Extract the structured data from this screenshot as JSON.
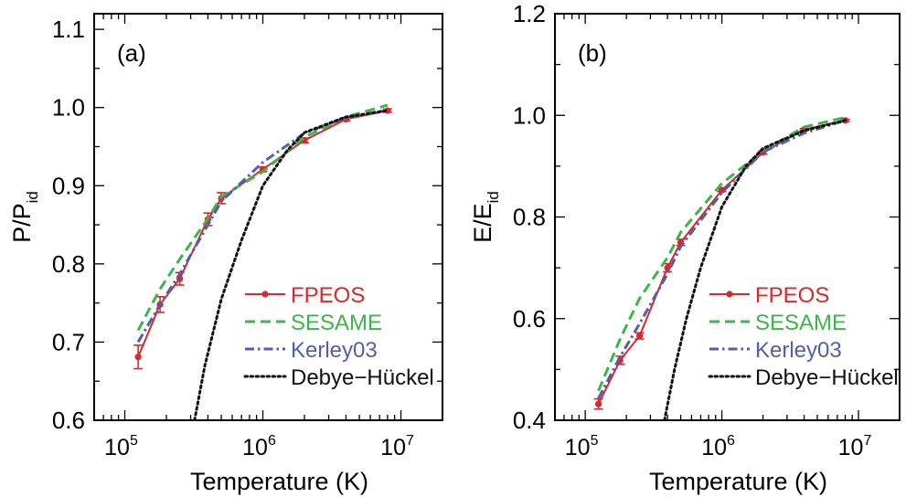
{
  "chart_data": [
    {
      "type": "line",
      "panel_label": "(a)",
      "xlabel": "Temperature (K)",
      "ylabel_main": "P/P",
      "ylabel_sub": "id",
      "xscale": "log",
      "xlim": [
        60000,
        20000000
      ],
      "ylim": [
        0.6,
        1.12
      ],
      "yticks": [
        0.6,
        0.7,
        0.8,
        0.9,
        1.0,
        1.1
      ],
      "ytick_labels": [
        "0.6",
        "0.7",
        "0.8",
        "0.9",
        "1.0",
        "1.1"
      ],
      "xticks": [
        {
          "value": 100000,
          "base": "10",
          "exp": "5"
        },
        {
          "value": 1000000,
          "base": "10",
          "exp": "6"
        },
        {
          "value": 10000000,
          "base": "10",
          "exp": "7"
        }
      ],
      "legend_position": "bottom-right",
      "series": [
        {
          "name": "FPEOS",
          "color": "#d8282c",
          "dash": "solid",
          "marker": "circle",
          "points": [
            [
              125000,
              0.681,
              0.015
            ],
            [
              180000,
              0.748,
              0.01
            ],
            [
              250000,
              0.781,
              0.008
            ],
            [
              400000,
              0.857,
              0.008
            ],
            [
              500000,
              0.884,
              0.007
            ],
            [
              1000000,
              0.921,
              0.003
            ],
            [
              2000000,
              0.958,
              0.003
            ],
            [
              4000000,
              0.985,
              0.002
            ],
            [
              8000000,
              0.996,
              0.002
            ]
          ]
        },
        {
          "name": "SESAME",
          "color": "#3cb54a",
          "dash": "dashed",
          "points": [
            [
              125000,
              0.715
            ],
            [
              180000,
              0.768
            ],
            [
              250000,
              0.806
            ],
            [
              400000,
              0.858
            ],
            [
              500000,
              0.886
            ],
            [
              1000000,
              0.918
            ],
            [
              2000000,
              0.962
            ],
            [
              4000000,
              0.988
            ],
            [
              8000000,
              1.003
            ]
          ]
        },
        {
          "name": "Kerley03",
          "color": "#4f5fa8",
          "dash": "dashdot",
          "points": [
            [
              125000,
              0.7
            ],
            [
              180000,
              0.748
            ],
            [
              250000,
              0.787
            ],
            [
              400000,
              0.85
            ],
            [
              500000,
              0.88
            ],
            [
              1000000,
              0.93
            ],
            [
              2000000,
              0.967
            ],
            [
              4000000,
              0.987
            ],
            [
              8000000,
              0.997
            ]
          ]
        },
        {
          "name": "Debye−Hückel",
          "color": "#111111",
          "dash": "dotted",
          "points": [
            [
              320000,
              0.6
            ],
            [
              380000,
              0.67
            ],
            [
              500000,
              0.755
            ],
            [
              700000,
              0.83
            ],
            [
              1000000,
              0.9
            ],
            [
              1500000,
              0.945
            ],
            [
              2000000,
              0.968
            ],
            [
              4000000,
              0.988
            ],
            [
              8000000,
              0.996
            ]
          ]
        }
      ]
    },
    {
      "type": "line",
      "panel_label": "(b)",
      "xlabel": "Temperature (K)",
      "ylabel_main": "E/E",
      "ylabel_sub": "id",
      "xscale": "log",
      "xlim": [
        60000,
        20000000
      ],
      "ylim": [
        0.4,
        1.2
      ],
      "yticks": [
        0.4,
        0.6,
        0.8,
        1.0,
        1.2
      ],
      "ytick_labels": [
        "0.4",
        "0.6",
        "0.8",
        "1.0",
        "1.2"
      ],
      "xticks": [
        {
          "value": 100000,
          "base": "10",
          "exp": "5"
        },
        {
          "value": 1000000,
          "base": "10",
          "exp": "6"
        },
        {
          "value": 10000000,
          "base": "10",
          "exp": "7"
        }
      ],
      "legend_position": "bottom-right",
      "series": [
        {
          "name": "FPEOS",
          "color": "#d8282c",
          "dash": "solid",
          "marker": "circle",
          "points": [
            [
              125000,
              0.432,
              0.01
            ],
            [
              180000,
              0.518,
              0.008
            ],
            [
              250000,
              0.566,
              0.006
            ],
            [
              400000,
              0.7,
              0.008
            ],
            [
              500000,
              0.75,
              0.006
            ],
            [
              1000000,
              0.853,
              0.003
            ],
            [
              2000000,
              0.927,
              0.003
            ],
            [
              4000000,
              0.972,
              0.002
            ],
            [
              8000000,
              0.99,
              0.002
            ]
          ]
        },
        {
          "name": "SESAME",
          "color": "#3cb54a",
          "dash": "dashed",
          "points": [
            [
              125000,
              0.458
            ],
            [
              180000,
              0.56
            ],
            [
              250000,
              0.64
            ],
            [
              400000,
              0.72
            ],
            [
              500000,
              0.77
            ],
            [
              1000000,
              0.866
            ],
            [
              2000000,
              0.93
            ],
            [
              4000000,
              0.977
            ],
            [
              8000000,
              0.996
            ]
          ]
        },
        {
          "name": "Kerley03",
          "color": "#4f5fa8",
          "dash": "dashdot",
          "points": [
            [
              125000,
              0.443
            ],
            [
              180000,
              0.525
            ],
            [
              250000,
              0.59
            ],
            [
              400000,
              0.688
            ],
            [
              500000,
              0.742
            ],
            [
              1000000,
              0.848
            ],
            [
              2000000,
              0.928
            ],
            [
              4000000,
              0.965
            ],
            [
              8000000,
              0.99
            ]
          ]
        },
        {
          "name": "Debye−Hückel",
          "color": "#111111",
          "dash": "dotted",
          "points": [
            [
              380000,
              0.4
            ],
            [
              450000,
              0.5
            ],
            [
              550000,
              0.6
            ],
            [
              700000,
              0.7
            ],
            [
              1000000,
              0.82
            ],
            [
              1500000,
              0.9
            ],
            [
              2000000,
              0.935
            ],
            [
              4000000,
              0.97
            ],
            [
              8000000,
              0.99
            ]
          ]
        }
      ]
    }
  ]
}
